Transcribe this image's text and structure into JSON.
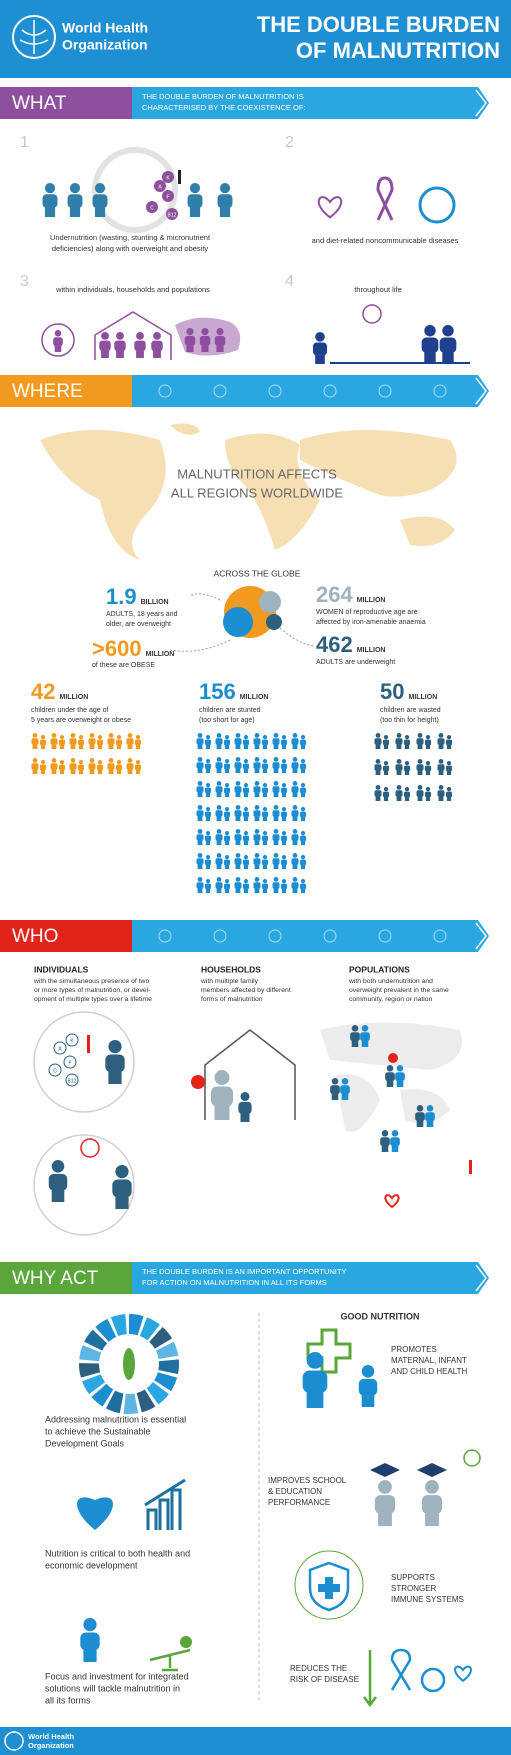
{
  "header": {
    "org": [
      "World Health",
      "Organization"
    ],
    "title": [
      "THE DOUBLE BURDEN",
      "OF MALNUTRITION"
    ]
  },
  "what": {
    "label": "WHAT",
    "banner": [
      "THE DOUBLE BURDEN OF MALNUTRITION IS",
      "CHARACTERISED BY THE COEXISTENCE OF:"
    ],
    "items": [
      {
        "number": 1,
        "text": [
          "Undernutrition (wasting, stunting & micronutrient",
          "deficiencies) along with overweight and obesity"
        ]
      },
      {
        "number": 2,
        "text": [
          "and diet-related noncommunicable diseases"
        ]
      },
      {
        "number": 3,
        "text": [
          "within individuals, households and populations"
        ]
      },
      {
        "number": 4,
        "text": [
          "throughout life"
        ]
      }
    ],
    "vitamins": [
      "A",
      "K",
      "C",
      "F",
      "B12"
    ]
  },
  "where": {
    "label": "WHERE",
    "map_text": [
      "MALNUTRITION AFFECTS",
      "ALL REGIONS WORLDWIDE"
    ],
    "globe_title": "ACROSS THE GLOBE",
    "adults": [
      {
        "value": 1.9,
        "unit": "BILLION",
        "text": [
          "ADULTS, 18 years and",
          "older, are overweight"
        ]
      },
      {
        "value": ">600",
        "unit": "MILLION",
        "text": [
          "of these are OBESE"
        ]
      },
      {
        "value": 264,
        "unit": "MILLION",
        "text": [
          "WOMEN of reproductive age are",
          "affected by iron-amenable anaemia"
        ]
      },
      {
        "value": 462,
        "unit": "MILLION",
        "text": [
          "ADULTS are underweight"
        ]
      }
    ],
    "children": [
      {
        "value": 42,
        "unit": "MILLION",
        "text": [
          "children under the age of",
          "5 years are overweight or obese"
        ]
      },
      {
        "value": 156,
        "unit": "MILLION",
        "text": [
          "children are stunted",
          "(too short for age)"
        ]
      },
      {
        "value": 50,
        "unit": "MILLION",
        "text": [
          "children are wasted",
          "(too thin for height)"
        ]
      }
    ]
  },
  "who": {
    "label": "WHO",
    "columns": [
      {
        "title": "INDIVIDUALS",
        "text": [
          "with the simultaneous presence of two",
          "or more types of malnutrition, or devel-",
          "opment of multiple types over a lifetime"
        ]
      },
      {
        "title": "HOUSEHOLDS",
        "text": [
          "with multiple family",
          "members affected by different",
          "forms of malnutrition"
        ]
      },
      {
        "title": "POPULATIONS",
        "text": [
          "with both undernutrition and",
          "overweight prevalent in the same",
          "community, region or nation"
        ]
      }
    ]
  },
  "why_act": {
    "label": "WHY ACT",
    "banner": [
      "THE DOUBLE BURDEN IS AN IMPORTANT OPPORTUNITY",
      "FOR ACTION ON MALNUTRITION IN ALL ITS FORMS"
    ],
    "left": [
      [
        "Addressing malnutrition is essential",
        "to achieve the Sustainable",
        "Development Goals"
      ],
      [
        "Nutrition is critical to both health and",
        "economic development"
      ],
      [
        "Focus and investment for integrated",
        "solutions will tackle malnutrition in",
        "all its forms"
      ]
    ],
    "good_nutrition": {
      "title": "GOOD NUTRITION",
      "items": [
        [
          "PROMOTES",
          "MATERNAL, INFANT",
          "AND CHILD HEALTH"
        ],
        [
          "IMPROVES SCHOOL",
          "& EDUCATION",
          "PERFORMANCE"
        ],
        [
          "SUPPORTS",
          "STRONGER",
          "IMMUNE SYSTEMS"
        ],
        [
          "REDUCES THE",
          "RISK OF DISEASE"
        ]
      ]
    }
  },
  "footer": {
    "org": [
      "World Health",
      "Organization"
    ]
  }
}
